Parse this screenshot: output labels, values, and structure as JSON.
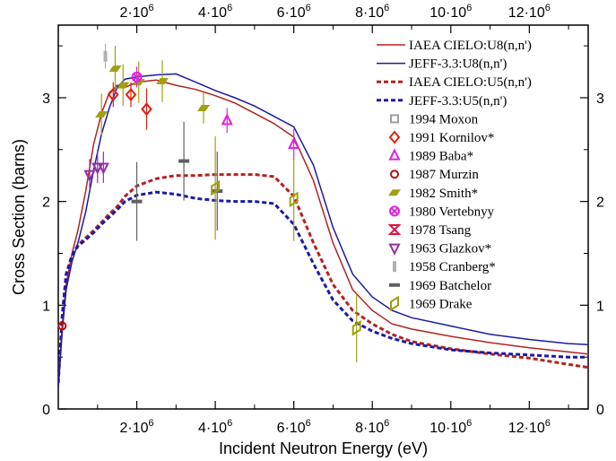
{
  "chart_data": {
    "type": "line",
    "xlabel": "Incident Neutron Energy (eV)",
    "ylabel": "Cross Section (barns)",
    "xlim": [
      0,
      13500000
    ],
    "ylim": [
      0,
      3.7
    ],
    "x_ticks": [
      {
        "value": 2000000,
        "mant": "2·10",
        "exp": "6"
      },
      {
        "value": 4000000,
        "mant": "4·10",
        "exp": "6"
      },
      {
        "value": 6000000,
        "mant": "6·10",
        "exp": "6"
      },
      {
        "value": 8000000,
        "mant": "8·10",
        "exp": "6"
      },
      {
        "value": 10000000,
        "mant": "10·10",
        "exp": "6"
      },
      {
        "value": 12000000,
        "mant": "12·10",
        "exp": "6"
      }
    ],
    "y_ticks": [
      {
        "value": 0,
        "label": "0"
      },
      {
        "value": 1,
        "label": "1"
      },
      {
        "value": 2,
        "label": "2"
      },
      {
        "value": 3,
        "label": "3"
      }
    ],
    "grid": false,
    "legend_position": "top-right",
    "series": [
      {
        "name": "IAEA CIELO:U8(n,n')",
        "color": "#b52020",
        "dashed": false,
        "points": [
          [
            0,
            0.25
          ],
          [
            100000,
            0.8
          ],
          [
            200000,
            1.2
          ],
          [
            350000,
            1.5
          ],
          [
            500000,
            1.72
          ],
          [
            700000,
            2.1
          ],
          [
            900000,
            2.55
          ],
          [
            1100000,
            2.85
          ],
          [
            1300000,
            3.05
          ],
          [
            1500000,
            3.12
          ],
          [
            1700000,
            3.1
          ],
          [
            2000000,
            3.15
          ],
          [
            2500000,
            3.17
          ],
          [
            3000000,
            3.12
          ],
          [
            3500000,
            3.08
          ],
          [
            4000000,
            3.02
          ],
          [
            4500000,
            2.95
          ],
          [
            5000000,
            2.85
          ],
          [
            5500000,
            2.75
          ],
          [
            6000000,
            2.62
          ],
          [
            6500000,
            2.2
          ],
          [
            7000000,
            1.6
          ],
          [
            7500000,
            1.15
          ],
          [
            8000000,
            0.95
          ],
          [
            8500000,
            0.82
          ],
          [
            9000000,
            0.77
          ],
          [
            10000000,
            0.7
          ],
          [
            11000000,
            0.64
          ],
          [
            12000000,
            0.59
          ],
          [
            13000000,
            0.55
          ],
          [
            13500000,
            0.53
          ]
        ]
      },
      {
        "name": "JEFF-3.3:U8(n,n')",
        "color": "#1a1aa8",
        "dashed": false,
        "points": [
          [
            0,
            0.2
          ],
          [
            100000,
            0.75
          ],
          [
            200000,
            1.15
          ],
          [
            350000,
            1.42
          ],
          [
            500000,
            1.6
          ],
          [
            700000,
            1.9
          ],
          [
            900000,
            2.3
          ],
          [
            1100000,
            2.65
          ],
          [
            1300000,
            2.9
          ],
          [
            1500000,
            3.1
          ],
          [
            1700000,
            3.18
          ],
          [
            2000000,
            3.2
          ],
          [
            2500000,
            3.22
          ],
          [
            3000000,
            3.23
          ],
          [
            3500000,
            3.15
          ],
          [
            4000000,
            3.07
          ],
          [
            4500000,
            3.0
          ],
          [
            5000000,
            2.92
          ],
          [
            5500000,
            2.82
          ],
          [
            6000000,
            2.72
          ],
          [
            6500000,
            2.35
          ],
          [
            7000000,
            1.75
          ],
          [
            7500000,
            1.3
          ],
          [
            8000000,
            1.08
          ],
          [
            8500000,
            0.95
          ],
          [
            9000000,
            0.88
          ],
          [
            10000000,
            0.8
          ],
          [
            11000000,
            0.72
          ],
          [
            12000000,
            0.67
          ],
          [
            13000000,
            0.63
          ],
          [
            13500000,
            0.62
          ]
        ]
      },
      {
        "name": "IAEA CIELO:U5(n,n')",
        "color": "#b52020",
        "dashed": true,
        "points": [
          [
            0,
            0.25
          ],
          [
            100000,
            0.9
          ],
          [
            200000,
            1.3
          ],
          [
            350000,
            1.48
          ],
          [
            500000,
            1.58
          ],
          [
            700000,
            1.65
          ],
          [
            900000,
            1.72
          ],
          [
            1100000,
            1.8
          ],
          [
            1300000,
            1.88
          ],
          [
            1500000,
            1.95
          ],
          [
            1700000,
            2.05
          ],
          [
            2000000,
            2.15
          ],
          [
            2500000,
            2.22
          ],
          [
            3000000,
            2.25
          ],
          [
            3500000,
            2.25
          ],
          [
            4000000,
            2.26
          ],
          [
            4500000,
            2.26
          ],
          [
            5000000,
            2.26
          ],
          [
            5500000,
            2.24
          ],
          [
            6000000,
            2.05
          ],
          [
            6500000,
            1.6
          ],
          [
            7000000,
            1.2
          ],
          [
            7500000,
            0.95
          ],
          [
            8000000,
            0.82
          ],
          [
            8500000,
            0.72
          ],
          [
            9000000,
            0.65
          ],
          [
            10000000,
            0.58
          ],
          [
            11000000,
            0.53
          ],
          [
            12000000,
            0.49
          ],
          [
            13000000,
            0.43
          ],
          [
            13500000,
            0.4
          ]
        ]
      },
      {
        "name": "JEFF-3.3:U5(n,n')",
        "color": "#1a1aa8",
        "dashed": true,
        "points": [
          [
            0,
            0.25
          ],
          [
            100000,
            0.9
          ],
          [
            200000,
            1.3
          ],
          [
            350000,
            1.48
          ],
          [
            500000,
            1.57
          ],
          [
            700000,
            1.63
          ],
          [
            900000,
            1.7
          ],
          [
            1100000,
            1.78
          ],
          [
            1300000,
            1.85
          ],
          [
            1500000,
            1.92
          ],
          [
            1700000,
            2.0
          ],
          [
            2000000,
            2.06
          ],
          [
            2500000,
            2.09
          ],
          [
            3000000,
            2.07
          ],
          [
            3500000,
            2.03
          ],
          [
            4000000,
            2.01
          ],
          [
            4500000,
            2.0
          ],
          [
            5000000,
            2.0
          ],
          [
            5500000,
            1.98
          ],
          [
            6000000,
            1.78
          ],
          [
            6500000,
            1.4
          ],
          [
            7000000,
            1.05
          ],
          [
            7500000,
            0.85
          ],
          [
            8000000,
            0.75
          ],
          [
            8500000,
            0.68
          ],
          [
            9000000,
            0.63
          ],
          [
            10000000,
            0.57
          ],
          [
            11000000,
            0.54
          ],
          [
            12000000,
            0.52
          ],
          [
            13000000,
            0.5
          ],
          [
            13500000,
            0.5
          ]
        ]
      }
    ],
    "experiments": [
      {
        "name": "1994 Moxon",
        "color": "#a0a0a0",
        "marker": "square",
        "points": []
      },
      {
        "name": "1991 Kornilov*",
        "color": "#e02010",
        "marker": "diamond",
        "points": [
          [
            1400000,
            3.03,
            0.12
          ],
          [
            1850000,
            3.03,
            0.12
          ],
          [
            2250000,
            2.89,
            0.2
          ]
        ]
      },
      {
        "name": "1989 Baba*",
        "color": "#e020e0",
        "marker": "triangle-up",
        "points": [
          [
            4300000,
            2.78,
            0.12
          ],
          [
            6000000,
            2.55,
            0.15
          ]
        ]
      },
      {
        "name": "1987 Murzin",
        "color": "#b01010",
        "marker": "circle",
        "points": [
          [
            100000,
            0.8,
            0.05
          ]
        ]
      },
      {
        "name": "1982 Smith*",
        "color": "#a0a010",
        "marker": "parallelogram",
        "points": [
          [
            1100000,
            2.84,
            0.2
          ],
          [
            1450000,
            3.28,
            0.22
          ],
          [
            1650000,
            3.12,
            0.2
          ],
          [
            2050000,
            3.15,
            0.2
          ],
          [
            2650000,
            3.16,
            0.2
          ],
          [
            3700000,
            2.9,
            0.15
          ]
        ]
      },
      {
        "name": "1980 Vertebnyy",
        "color": "#e020e0",
        "marker": "circle-x",
        "points": [
          [
            2000000,
            3.2,
            0.1
          ]
        ]
      },
      {
        "name": "1978 Tsang",
        "color": "#e01040",
        "marker": "bowtie",
        "points": []
      },
      {
        "name": "1963 Glazkov*",
        "color": "#9030a0",
        "marker": "triangle-down",
        "points": [
          [
            800000,
            2.26,
            0.15
          ],
          [
            1000000,
            2.33,
            0.15
          ],
          [
            1150000,
            2.33,
            0.15
          ]
        ]
      },
      {
        "name": "1958 Cranberg*",
        "color": "#b0b0b0",
        "marker": "bar",
        "points": [
          [
            1200000,
            3.4,
            0.12
          ]
        ]
      },
      {
        "name": "1969 Batchelor",
        "color": "#606060",
        "marker": "dash",
        "points": [
          [
            2000000,
            2.0,
            0.38
          ],
          [
            3200000,
            2.39,
            0.38
          ],
          [
            4050000,
            2.1,
            0.38
          ]
        ]
      },
      {
        "name": "1969 Drake",
        "color": "#a0a010",
        "marker": "parallelogram-open",
        "points": [
          [
            4000000,
            2.13,
            0.5
          ],
          [
            6000000,
            2.02,
            0.4
          ],
          [
            7600000,
            0.78,
            0.33
          ]
        ]
      }
    ]
  }
}
